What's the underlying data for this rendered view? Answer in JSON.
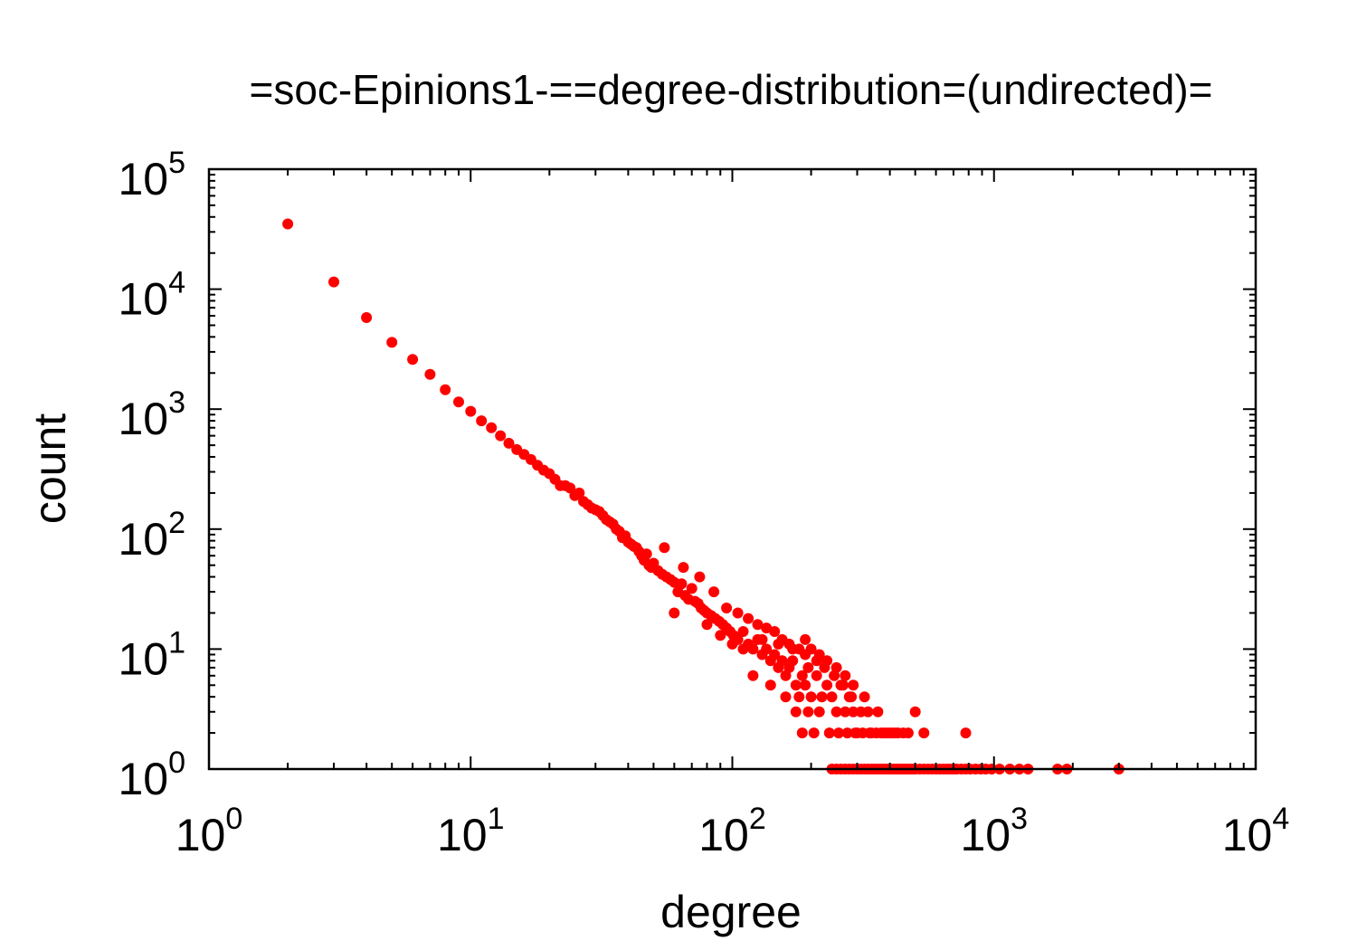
{
  "chart_data": {
    "type": "scatter",
    "title": "=soc-Epinions1-==degree-distribution=(undirected)=",
    "xlabel": "degree",
    "ylabel": "count",
    "x_scale": "log",
    "y_scale": "log",
    "xlim": [
      1,
      10000
    ],
    "ylim": [
      1,
      100000
    ],
    "x_ticks": [
      {
        "base": "10",
        "exp": "0",
        "value": 1
      },
      {
        "base": "10",
        "exp": "1",
        "value": 10
      },
      {
        "base": "10",
        "exp": "2",
        "value": 100
      },
      {
        "base": "10",
        "exp": "3",
        "value": 1000
      },
      {
        "base": "10",
        "exp": "4",
        "value": 10000
      }
    ],
    "y_ticks": [
      {
        "base": "10",
        "exp": "0",
        "value": 1
      },
      {
        "base": "10",
        "exp": "1",
        "value": 10
      },
      {
        "base": "10",
        "exp": "2",
        "value": 100
      },
      {
        "base": "10",
        "exp": "3",
        "value": 1000
      },
      {
        "base": "10",
        "exp": "4",
        "value": 10000
      },
      {
        "base": "10",
        "exp": "5",
        "value": 100000
      }
    ],
    "grid": false,
    "legend": "none",
    "marker_color": "#ff0000",
    "series": [
      {
        "points": [
          [
            2,
            35000
          ],
          [
            3,
            11500
          ],
          [
            4,
            5800
          ],
          [
            5,
            3600
          ],
          [
            6,
            2600
          ],
          [
            7,
            1950
          ],
          [
            8,
            1450
          ],
          [
            9,
            1150
          ],
          [
            10,
            960
          ],
          [
            11,
            800
          ],
          [
            12,
            700
          ],
          [
            13,
            600
          ],
          [
            14,
            520
          ],
          [
            15,
            460
          ],
          [
            16,
            420
          ],
          [
            17,
            380
          ],
          [
            18,
            340
          ],
          [
            19,
            310
          ],
          [
            20,
            290
          ],
          [
            21,
            260
          ],
          [
            22,
            230
          ],
          [
            23,
            230
          ],
          [
            24,
            220
          ],
          [
            25,
            190
          ],
          [
            26,
            200
          ],
          [
            27,
            170
          ],
          [
            28,
            160
          ],
          [
            29,
            150
          ],
          [
            30,
            145
          ],
          [
            31,
            140
          ],
          [
            32,
            130
          ],
          [
            33,
            120
          ],
          [
            34,
            115
          ],
          [
            35,
            110
          ],
          [
            36,
            100
          ],
          [
            37,
            96
          ],
          [
            38,
            85
          ],
          [
            39,
            88
          ],
          [
            40,
            78
          ],
          [
            41,
            75
          ],
          [
            42,
            72
          ],
          [
            43,
            70
          ],
          [
            44,
            65
          ],
          [
            45,
            60
          ],
          [
            46,
            55
          ],
          [
            47,
            62
          ],
          [
            48,
            50
          ],
          [
            49,
            48
          ],
          [
            50,
            52
          ],
          [
            52,
            45
          ],
          [
            54,
            42
          ],
          [
            56,
            40
          ],
          [
            58,
            38
          ],
          [
            60,
            36
          ],
          [
            62,
            30
          ],
          [
            64,
            35
          ],
          [
            66,
            28
          ],
          [
            68,
            26
          ],
          [
            70,
            32
          ],
          [
            72,
            25
          ],
          [
            74,
            24
          ],
          [
            76,
            22
          ],
          [
            78,
            21
          ],
          [
            80,
            20
          ],
          [
            83,
            19
          ],
          [
            86,
            18
          ],
          [
            89,
            17
          ],
          [
            92,
            16
          ],
          [
            95,
            15
          ],
          [
            98,
            14
          ],
          [
            101,
            13
          ],
          [
            105,
            12
          ],
          [
            110,
            14
          ],
          [
            115,
            11
          ],
          [
            120,
            10
          ],
          [
            125,
            12
          ],
          [
            130,
            9
          ],
          [
            135,
            10
          ],
          [
            140,
            8
          ],
          [
            145,
            9
          ],
          [
            150,
            7
          ],
          [
            155,
            8
          ],
          [
            160,
            6
          ],
          [
            165,
            7
          ],
          [
            170,
            8
          ],
          [
            175,
            5
          ],
          [
            180,
            4
          ],
          [
            185,
            6
          ],
          [
            190,
            5
          ],
          [
            195,
            7
          ],
          [
            200,
            4
          ],
          [
            210,
            6
          ],
          [
            220,
            4
          ],
          [
            230,
            5
          ],
          [
            240,
            4
          ],
          [
            250,
            3
          ],
          [
            260,
            5
          ],
          [
            270,
            3
          ],
          [
            280,
            4
          ],
          [
            290,
            3
          ],
          [
            300,
            2
          ],
          [
            310,
            3
          ],
          [
            320,
            4
          ],
          [
            330,
            3
          ],
          [
            340,
            2
          ],
          [
            360,
            3
          ],
          [
            380,
            2
          ],
          [
            400,
            2
          ],
          [
            420,
            2
          ],
          [
            450,
            2
          ],
          [
            500,
            3
          ],
          [
            540,
            2
          ],
          [
            780,
            2
          ],
          [
            55,
            70
          ],
          [
            65,
            48
          ],
          [
            75,
            40
          ],
          [
            85,
            30
          ],
          [
            95,
            22
          ],
          [
            105,
            20
          ],
          [
            115,
            18
          ],
          [
            125,
            16
          ],
          [
            135,
            15
          ],
          [
            145,
            14
          ],
          [
            155,
            12
          ],
          [
            165,
            11
          ],
          [
            180,
            10
          ],
          [
            190,
            12
          ],
          [
            200,
            10
          ],
          [
            215,
            9
          ],
          [
            230,
            8
          ],
          [
            250,
            7
          ],
          [
            270,
            6
          ],
          [
            290,
            5
          ],
          [
            60,
            20
          ],
          [
            80,
            16
          ],
          [
            90,
            13
          ],
          [
            100,
            11
          ],
          [
            110,
            10
          ],
          [
            130,
            12
          ],
          [
            150,
            11
          ],
          [
            170,
            10
          ],
          [
            190,
            9
          ],
          [
            210,
            8
          ],
          [
            225,
            7
          ],
          [
            245,
            6
          ],
          [
            265,
            5
          ],
          [
            285,
            4
          ],
          [
            120,
            6
          ],
          [
            140,
            5
          ],
          [
            160,
            4
          ],
          [
            175,
            3
          ],
          [
            185,
            2
          ],
          [
            195,
            3
          ],
          [
            205,
            2
          ],
          [
            215,
            3
          ],
          [
            235,
            2
          ],
          [
            255,
            2
          ],
          [
            275,
            2
          ],
          [
            295,
            2
          ],
          [
            315,
            2
          ],
          [
            335,
            2
          ],
          [
            355,
            2
          ],
          [
            370,
            2
          ],
          [
            390,
            2
          ],
          [
            410,
            2
          ],
          [
            430,
            2
          ],
          [
            470,
            2
          ],
          [
            240,
            1
          ],
          [
            250,
            1
          ],
          [
            260,
            1
          ],
          [
            270,
            1
          ],
          [
            280,
            1
          ],
          [
            290,
            1
          ],
          [
            300,
            1
          ],
          [
            310,
            1
          ],
          [
            320,
            1
          ],
          [
            330,
            1
          ],
          [
            340,
            1
          ],
          [
            350,
            1
          ],
          [
            360,
            1
          ],
          [
            370,
            1
          ],
          [
            380,
            1
          ],
          [
            390,
            1
          ],
          [
            400,
            1
          ],
          [
            410,
            1
          ],
          [
            420,
            1
          ],
          [
            430,
            1
          ],
          [
            440,
            1
          ],
          [
            450,
            1
          ],
          [
            460,
            1
          ],
          [
            470,
            1
          ],
          [
            480,
            1
          ],
          [
            490,
            1
          ],
          [
            500,
            1
          ],
          [
            520,
            1
          ],
          [
            540,
            1
          ],
          [
            560,
            1
          ],
          [
            580,
            1
          ],
          [
            600,
            1
          ],
          [
            620,
            1
          ],
          [
            640,
            1
          ],
          [
            660,
            1
          ],
          [
            680,
            1
          ],
          [
            700,
            1
          ],
          [
            720,
            1
          ],
          [
            750,
            1
          ],
          [
            780,
            1
          ],
          [
            810,
            1
          ],
          [
            850,
            1
          ],
          [
            890,
            1
          ],
          [
            930,
            1
          ],
          [
            980,
            1
          ],
          [
            1050,
            1
          ],
          [
            1150,
            1
          ],
          [
            1250,
            1
          ],
          [
            1350,
            1
          ],
          [
            1750,
            1
          ],
          [
            1900,
            1
          ],
          [
            3000,
            1
          ]
        ]
      }
    ]
  }
}
